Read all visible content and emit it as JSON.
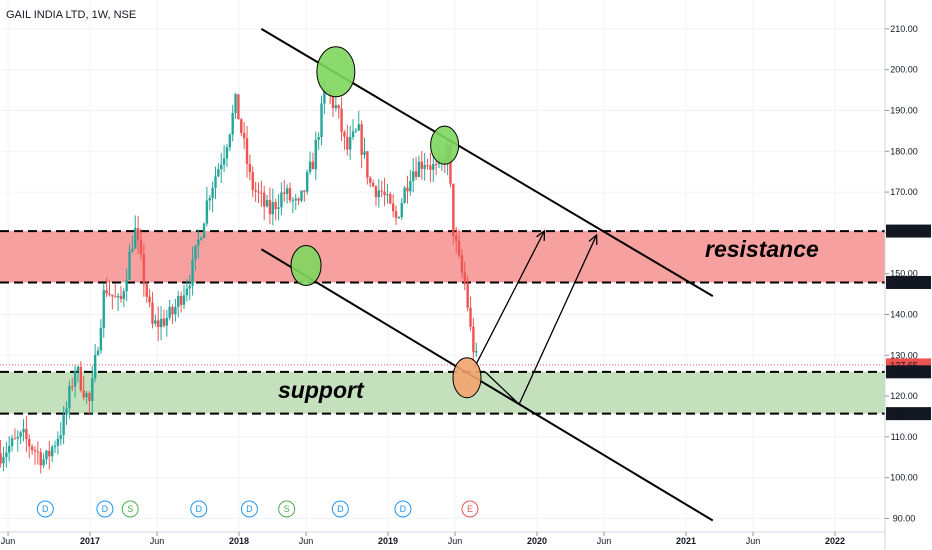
{
  "title": "GAIL INDIA LTD, 1W, NSE",
  "colors": {
    "up": "#26a69a",
    "down": "#ef5350",
    "resistance_fill": "#f7a0a0",
    "support_fill": "#c5e0bd",
    "circle_green": "#7ed65e",
    "circle_orange": "#f2a46f",
    "last_price": "#ef5350",
    "dividend": "#2196f3",
    "split": "#4caf50",
    "earnings": "#ef5350"
  },
  "annotations": {
    "resistance": "resistance",
    "support": "support"
  },
  "chart_data": {
    "type": "candlestick",
    "ylim": [
      88,
      214
    ],
    "y_ticks": [
      90,
      100,
      110,
      120,
      130,
      140,
      150,
      160,
      170,
      180,
      190,
      200,
      210
    ],
    "x_labels": [
      "Jun",
      "2017",
      "Jun",
      "2018",
      "Jun",
      "2019",
      "Jun",
      "2020",
      "Jun",
      "2021",
      "Jun",
      "2022"
    ],
    "x_label_positions": [
      2016.45,
      2017.0,
      2017.45,
      2018.0,
      2018.45,
      2019.0,
      2019.45,
      2020.0,
      2020.45,
      2021.0,
      2021.45,
      2022.0
    ],
    "price_labels": [
      {
        "value": 160.45,
        "text": "160.45",
        "style": "level"
      },
      {
        "value": 147.85,
        "text": "147.85",
        "style": "level"
      },
      {
        "value": 127.65,
        "text": "127.65",
        "style": "last"
      },
      {
        "value": 125.95,
        "text": "125.95",
        "style": "level"
      },
      {
        "value": 115.7,
        "text": "115.70",
        "style": "level"
      }
    ],
    "zones": [
      {
        "name": "resistance",
        "from": 147.85,
        "to": 160.45
      },
      {
        "name": "support",
        "from": 115.7,
        "to": 125.95
      }
    ],
    "last_price": 127.65,
    "events": [
      {
        "x": 2016.7,
        "label": "D",
        "kind": "dividend"
      },
      {
        "x": 2017.1,
        "label": "D",
        "kind": "dividend"
      },
      {
        "x": 2017.27,
        "label": "S",
        "kind": "split"
      },
      {
        "x": 2017.73,
        "label": "D",
        "kind": "dividend"
      },
      {
        "x": 2018.07,
        "label": "D",
        "kind": "dividend"
      },
      {
        "x": 2018.32,
        "label": "S",
        "kind": "split"
      },
      {
        "x": 2018.68,
        "label": "D",
        "kind": "dividend"
      },
      {
        "x": 2019.1,
        "label": "D",
        "kind": "dividend"
      },
      {
        "x": 2019.55,
        "label": "E",
        "kind": "earnings"
      }
    ],
    "series": [
      {
        "x": 2016.4,
        "close": 106
      },
      {
        "x": 2016.55,
        "close": 110
      },
      {
        "x": 2016.7,
        "close": 104
      },
      {
        "x": 2016.82,
        "close": 113
      },
      {
        "x": 2016.9,
        "close": 127
      },
      {
        "x": 2017.0,
        "close": 118
      },
      {
        "x": 2017.1,
        "close": 147
      },
      {
        "x": 2017.2,
        "close": 142
      },
      {
        "x": 2017.3,
        "close": 161
      },
      {
        "x": 2017.42,
        "close": 137
      },
      {
        "x": 2017.55,
        "close": 140
      },
      {
        "x": 2017.68,
        "close": 150
      },
      {
        "x": 2017.8,
        "close": 170
      },
      {
        "x": 2017.9,
        "close": 180
      },
      {
        "x": 2017.98,
        "close": 192
      },
      {
        "x": 2018.08,
        "close": 172
      },
      {
        "x": 2018.2,
        "close": 165
      },
      {
        "x": 2018.3,
        "close": 170
      },
      {
        "x": 2018.4,
        "close": 166
      },
      {
        "x": 2018.5,
        "close": 178
      },
      {
        "x": 2018.58,
        "close": 195
      },
      {
        "x": 2018.66,
        "close": 190
      },
      {
        "x": 2018.72,
        "close": 180
      },
      {
        "x": 2018.8,
        "close": 185
      },
      {
        "x": 2018.88,
        "close": 172
      },
      {
        "x": 2018.96,
        "close": 170
      },
      {
        "x": 2019.05,
        "close": 163
      },
      {
        "x": 2019.15,
        "close": 175
      },
      {
        "x": 2019.25,
        "close": 178
      },
      {
        "x": 2019.33,
        "close": 175
      },
      {
        "x": 2019.4,
        "close": 180
      },
      {
        "x": 2019.44,
        "close": 160
      },
      {
        "x": 2019.48,
        "close": 152
      },
      {
        "x": 2019.52,
        "close": 147
      },
      {
        "x": 2019.56,
        "close": 134
      },
      {
        "x": 2019.6,
        "close": 127.65
      }
    ],
    "trendlines": [
      {
        "x1": 2018.15,
        "y1": 210,
        "x2": 2021.18,
        "y2": 144.5
      },
      {
        "x1": 2018.15,
        "y1": 156,
        "x2": 2021.18,
        "y2": 89.5
      }
    ],
    "projections": [
      [
        [
          2019.58,
          127
        ],
        [
          2020.05,
          160.5
        ]
      ],
      [
        [
          2019.65,
          126
        ],
        [
          2019.88,
          118
        ],
        [
          2020.4,
          159.5
        ]
      ]
    ],
    "highlights": [
      {
        "x": 2018.65,
        "y": 199.5,
        "kind": "green"
      },
      {
        "x": 2019.38,
        "y": 181.5,
        "kind": "green"
      },
      {
        "x": 2018.45,
        "y": 152,
        "kind": "green"
      },
      {
        "x": 2019.53,
        "y": 124.5,
        "kind": "orange"
      }
    ]
  }
}
